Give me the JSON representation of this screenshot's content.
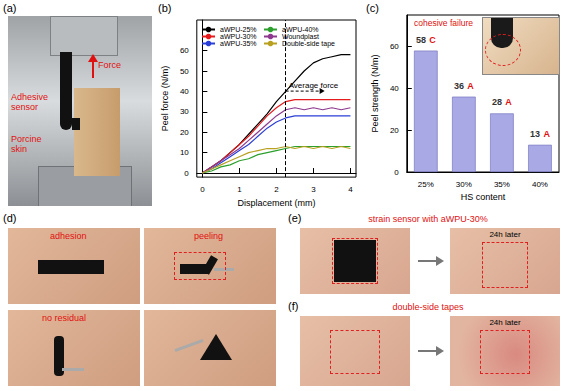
{
  "figure": {
    "panel_a": {
      "label": "(a)",
      "force": "Force",
      "sensor": "Adhesive sensor",
      "skin": "Porcine skin"
    },
    "panel_d": {
      "label": "(d)",
      "adhesion": "adhesion",
      "peeling": "peeling",
      "no_residual": "no residual"
    },
    "panel_e": {
      "label": "(e)",
      "caption": "strain sensor with aWPU-30%",
      "after": "24h later"
    },
    "panel_f": {
      "label": "(f)",
      "caption": "double-side tapes",
      "after": "24h later"
    }
  },
  "chart_data": [
    {
      "label": "(b)",
      "type": "line",
      "x_label": "Displacement (mm)",
      "y_label": "Peel force (N/m)",
      "x": [
        0,
        0.25,
        0.5,
        0.75,
        1,
        1.25,
        1.5,
        1.75,
        2,
        2.25,
        2.5,
        2.75,
        3,
        3.25,
        3.5,
        3.75,
        4
      ],
      "series": [
        {
          "name": "aWPU-25%",
          "color": "#000000",
          "values": [
            0,
            3,
            6,
            10,
            14,
            19,
            24,
            29,
            35,
            40,
            45,
            50,
            54,
            56,
            57,
            58,
            58
          ]
        },
        {
          "name": "aWPU-30%",
          "color": "#e41a1c",
          "values": [
            0,
            3,
            6,
            10,
            14,
            18,
            23,
            28,
            32,
            35,
            36,
            36,
            36,
            36,
            36,
            36,
            36
          ]
        },
        {
          "name": "aWPU-35%",
          "color": "#2b3fd6",
          "values": [
            0,
            2,
            5,
            8,
            11,
            14,
            18,
            22,
            25,
            27,
            28,
            28,
            28,
            28,
            28,
            28,
            28
          ]
        },
        {
          "name": "aWPU-40%",
          "color": "#2ca02c",
          "values": [
            0,
            1,
            3,
            4,
            6,
            7,
            9,
            10,
            11,
            12,
            13,
            13,
            13,
            13,
            13,
            13,
            13
          ]
        },
        {
          "name": "Woundplast",
          "color": "#8e3a8e",
          "values": [
            0,
            3,
            6,
            9,
            12,
            16,
            20,
            24,
            28,
            31,
            32,
            31,
            32,
            31,
            32,
            31,
            32
          ]
        },
        {
          "name": "Double-side tape",
          "color": "#b8a020",
          "values": [
            0,
            2,
            4,
            6,
            8,
            10,
            11,
            12,
            12,
            13,
            12,
            13,
            12,
            13,
            12,
            13,
            12
          ]
        }
      ],
      "xlim": [
        -0.15,
        4.15
      ],
      "xticks": [
        0,
        1,
        2,
        3,
        4
      ],
      "ylim": [
        -2,
        75
      ],
      "yticks": [
        0,
        10,
        20,
        30,
        40,
        50,
        60
      ],
      "legend": "upper left",
      "annotation": {
        "text": "Average force",
        "x": 2.25
      }
    },
    {
      "label": "(c)",
      "type": "bar",
      "x_label": "HS content",
      "y_label": "Peel strength (N/m)",
      "categories": [
        "25%",
        "30%",
        "35%",
        "40%"
      ],
      "values": [
        58,
        36,
        28,
        13
      ],
      "letters": [
        "C",
        "A",
        "A",
        "A"
      ],
      "data_labels": true,
      "color": "#a9a9e6",
      "ylim": [
        0,
        75
      ],
      "yticks": [
        0,
        20,
        40,
        60
      ],
      "annotation": "cohesive failure"
    }
  ]
}
